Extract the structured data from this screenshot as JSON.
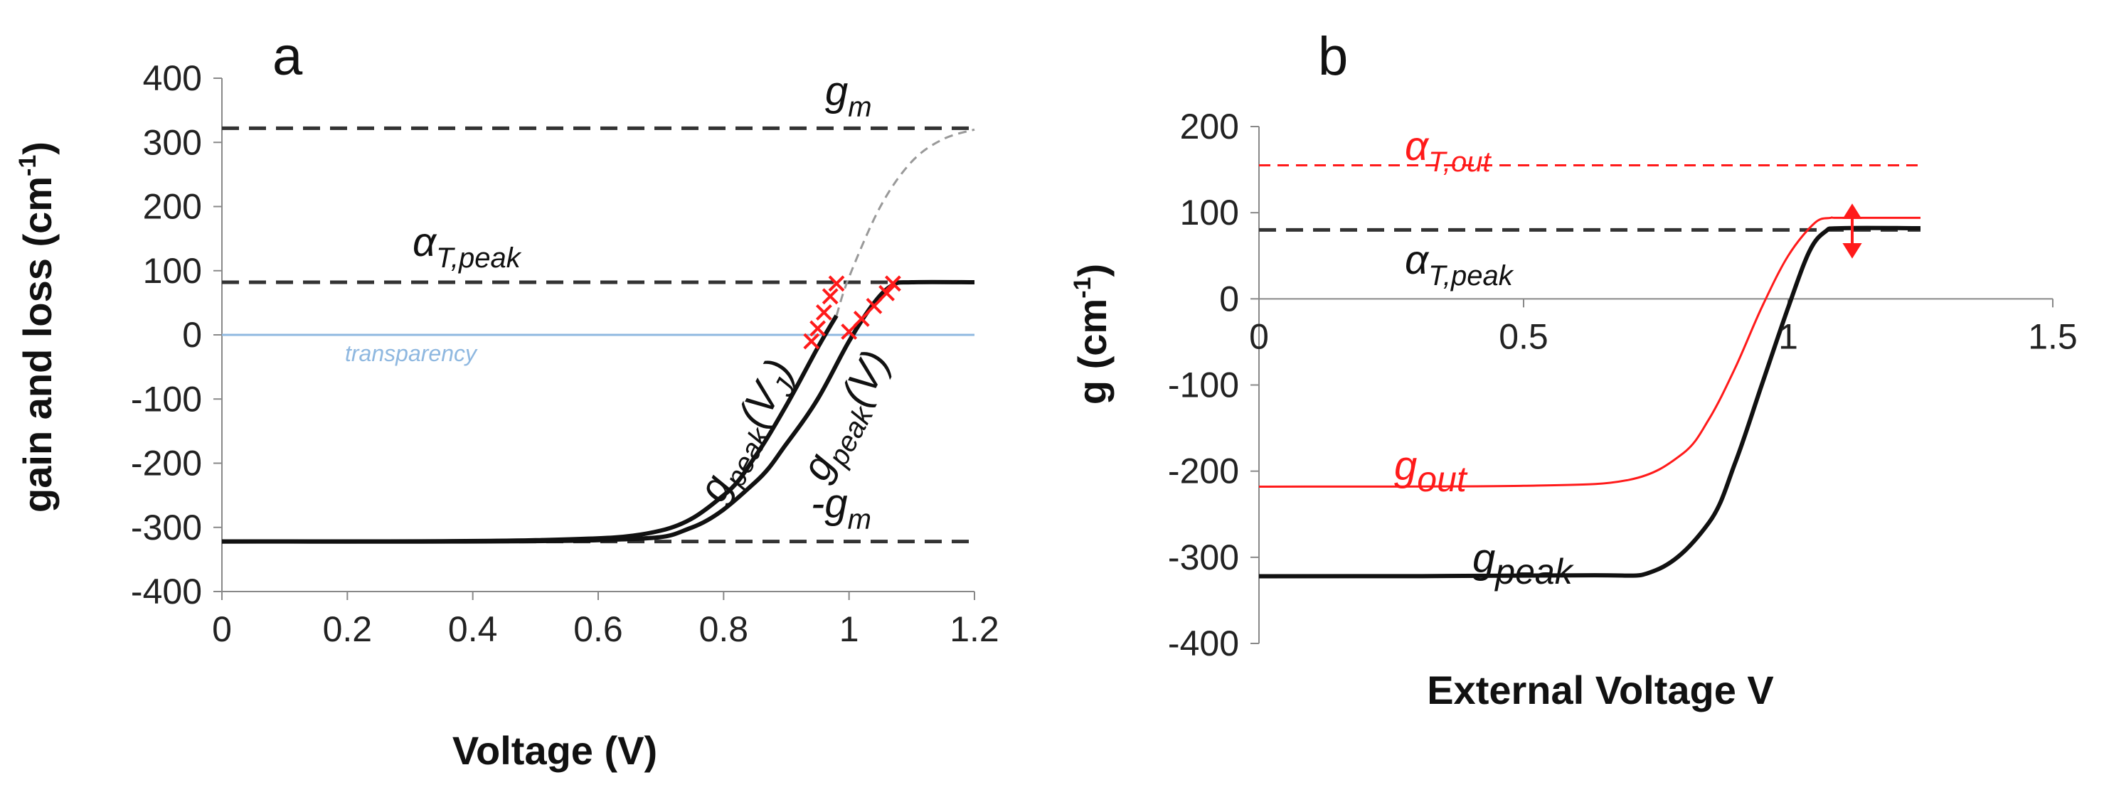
{
  "chart_data": [
    {
      "type": "line",
      "panel": "a",
      "xlabel": "Voltage (V)",
      "ylabel": "gain and loss (cm",
      "ylabel_sup": "-1",
      "ylabel_close": ")",
      "xlim": [
        0,
        1.2
      ],
      "ylim": [
        -400,
        400
      ],
      "xticks": [
        0,
        0.2,
        0.4,
        0.6,
        0.8,
        1,
        1.2
      ],
      "xtick_labels": [
        "0",
        "0.2",
        "0.4",
        "0.6",
        "0.8",
        "1",
        "1.2"
      ],
      "yticks": [
        -400,
        -300,
        -200,
        -100,
        0,
        100,
        200,
        300,
        400
      ],
      "ytick_labels": [
        "-400",
        "-300",
        "-200",
        "-100",
        "0",
        "100",
        "200",
        "300",
        "400"
      ],
      "hlines": [
        {
          "name": "g_m",
          "y": 322,
          "style": "dashed"
        },
        {
          "name": "alpha_T_peak",
          "y": 82,
          "style": "dashed"
        },
        {
          "name": "-g_m",
          "y": -322,
          "style": "dashed"
        },
        {
          "name": "transparency",
          "y": 0,
          "style": "solid-light-blue"
        }
      ],
      "series": [
        {
          "name": "g_peak(V_J)",
          "x": [
            0,
            0.5,
            0.7,
            0.8,
            0.85,
            0.9,
            0.95,
            0.98
          ],
          "y": [
            -322,
            -320,
            -305,
            -250,
            -190,
            -110,
            -20,
            30
          ]
        },
        {
          "name": "g_peak(V_J) extension",
          "x": [
            0.98,
            1.0,
            1.05,
            1.1,
            1.15,
            1.2
          ],
          "y": [
            30,
            90,
            200,
            270,
            305,
            320
          ]
        },
        {
          "name": "g_peak(V)",
          "x": [
            0,
            0.6,
            0.75,
            0.85,
            0.9,
            0.95,
            1.0,
            1.04,
            1.07,
            1.1,
            1.2
          ],
          "y": [
            -322,
            -320,
            -300,
            -230,
            -170,
            -100,
            -10,
            50,
            78,
            82,
            82
          ]
        }
      ],
      "markers": [
        {
          "series": "g_peak(V_J)",
          "x": [
            0.94,
            0.95,
            0.96,
            0.97,
            0.98
          ],
          "y": [
            -10,
            10,
            35,
            60,
            80
          ]
        },
        {
          "series": "g_peak(V)",
          "x": [
            1.0,
            1.02,
            1.04,
            1.06,
            1.07
          ],
          "y": [
            5,
            25,
            45,
            65,
            80
          ]
        }
      ],
      "labels": {
        "panel_letter": "a",
        "gm": {
          "main": "g",
          "sub": "m"
        },
        "alpha": {
          "main": "α",
          "sub": "T,peak"
        },
        "neg_gm": {
          "main": "-g",
          "sub": "m"
        },
        "transparency": "transparency",
        "gpeak_vj": {
          "main": "g",
          "sub": "peak",
          "tail": "(V",
          "tail_sub": "J",
          "close": ")"
        },
        "gpeak_v": {
          "main": "g",
          "sub": "peak",
          "tail": "(V)"
        }
      }
    },
    {
      "type": "line",
      "panel": "b",
      "xlabel": "External Voltage V",
      "ylabel": "g (cm",
      "ylabel_sup": "-1",
      "ylabel_close": ")",
      "xlim": [
        0,
        1.5
      ],
      "ylim": [
        -400,
        200
      ],
      "xticks": [
        0,
        0.5,
        1,
        1.5
      ],
      "xtick_labels": [
        "0",
        "0.5",
        "1",
        "1.5"
      ],
      "yticks": [
        -400,
        -300,
        -200,
        -100,
        0,
        100,
        200
      ],
      "ytick_labels": [
        "-400",
        "-300",
        "-200",
        "-100",
        "0",
        "100",
        "200"
      ],
      "hlines": [
        {
          "name": "alpha_T_out",
          "y": 155,
          "style": "dashed-red"
        },
        {
          "name": "alpha_T_peak",
          "y": 80,
          "style": "dashed"
        }
      ],
      "series": [
        {
          "name": "g_out",
          "x": [
            0,
            0.5,
            0.7,
            0.8,
            0.85,
            0.9,
            0.95,
            1.0,
            1.05,
            1.08,
            1.1,
            1.25
          ],
          "y": [
            -218,
            -217,
            -210,
            -180,
            -140,
            -80,
            -10,
            50,
            88,
            94,
            94,
            94
          ]
        },
        {
          "name": "g_peak",
          "x": [
            0,
            0.6,
            0.75,
            0.85,
            0.9,
            0.95,
            1.0,
            1.04,
            1.07,
            1.1,
            1.25
          ],
          "y": [
            -322,
            -321,
            -315,
            -260,
            -190,
            -100,
            -10,
            55,
            78,
            82,
            82
          ]
        }
      ],
      "labels": {
        "panel_letter": "b",
        "alpha_out": {
          "main": "α",
          "sub": "T,out"
        },
        "alpha_peak": {
          "main": "α",
          "sub": "T,peak"
        },
        "gout": {
          "main": "g",
          "sub": "out"
        },
        "gpeak": {
          "main": "g",
          "sub": "peak"
        }
      }
    }
  ],
  "colors": {
    "black": "#111111",
    "dash": "#333333",
    "red": "#ff1a1a",
    "transparency": "#8fb8e0",
    "faint": "#999999"
  }
}
